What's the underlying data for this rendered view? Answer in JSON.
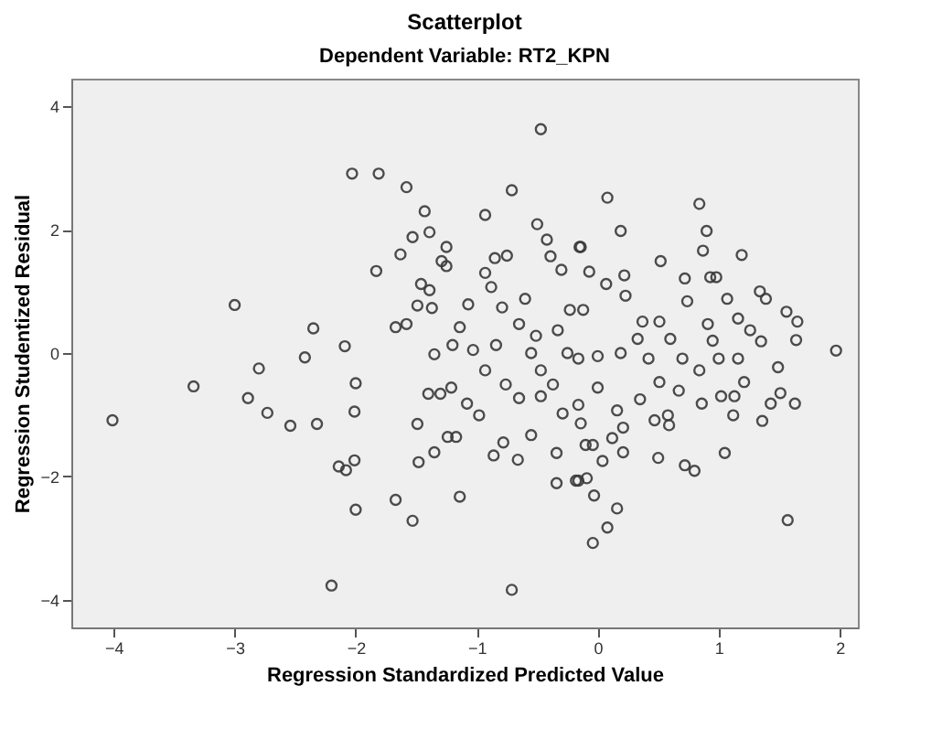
{
  "chart_data": {
    "type": "scatter",
    "title": "Scatterplot",
    "subtitle": "Dependent Variable: RT2_KPN",
    "xlabel": "Regression Standardized Predicted Value",
    "ylabel": "Regression Studentized Residual",
    "x": [
      -4.01,
      -3.0,
      -3.34,
      -2.89,
      -2.8,
      -2.73,
      -2.54,
      -2.32,
      -2.42,
      -2.35,
      -2.2,
      -2.03,
      -1.81,
      -1.58,
      -1.43,
      -0.93,
      -0.71,
      -0.47,
      -0.5,
      -1.83,
      -1.63,
      -1.25,
      -2.09,
      -2.0,
      -2.01,
      -2.14,
      -2.08,
      -2.01,
      -2.0,
      -1.67,
      -1.53,
      -1.14,
      -0.71,
      -1.48,
      -1.35,
      -1.24,
      -1.17,
      -1.49,
      -1.4,
      -1.3,
      -1.21,
      -1.08,
      -0.98,
      -0.86,
      -0.78,
      -0.66,
      -0.55,
      -0.34,
      -0.34,
      -0.18,
      -1.67,
      -1.58,
      -1.49,
      -1.37,
      -1.46,
      -1.39,
      -1.29,
      -1.25,
      -1.39,
      -1.53,
      -1.35,
      -1.2,
      -1.03,
      -0.93,
      -0.88,
      -0.79,
      -0.93,
      -0.76,
      -0.84,
      -0.65,
      -0.6,
      -0.75,
      -0.85,
      -0.42,
      -0.39,
      -0.3,
      -0.15,
      -0.55,
      -0.47,
      -0.37,
      -0.29,
      -0.25,
      -0.16,
      -0.23,
      -0.33,
      -0.51,
      -0.47,
      -0.65,
      -1.07,
      -1.14,
      0.08,
      0.84,
      0.19,
      0.9,
      0.87,
      1.19,
      -0.14,
      0.52,
      -0.07,
      0.22,
      0.93,
      0.98,
      0.72,
      1.34,
      1.39,
      1.56,
      1.65,
      1.64,
      1.97,
      1.63,
      1.51,
      1.43,
      1.36,
      1.57,
      1.05,
      0.72,
      0.8,
      0.5,
      0.04,
      0.21,
      -0.03,
      0.16,
      0.08,
      -0.04,
      -0.16,
      -0.09,
      0.12,
      0.21,
      -0.14,
      -0.1,
      -0.04,
      0.58,
      0.47,
      0.59,
      0.86,
      1.02,
      1.12,
      1.13,
      0.35,
      0.67,
      0.51,
      0.0,
      -0.16,
      0.16,
      0.0,
      0.19,
      0.33,
      0.51,
      0.74,
      0.91,
      0.95,
      0.84,
      1.16,
      1.26,
      1.35,
      1.49,
      1.21,
      0.7,
      0.6,
      0.42,
      0.37,
      0.23,
      0.07,
      -0.12,
      1.07,
      1.16,
      1.0
    ],
    "values": [
      -1.09,
      0.78,
      -0.54,
      -0.73,
      -0.25,
      -0.97,
      -1.18,
      -1.15,
      -0.07,
      0.4,
      -3.77,
      2.91,
      2.91,
      2.69,
      2.3,
      2.24,
      2.64,
      3.63,
      2.09,
      1.33,
      1.6,
      1.72,
      0.11,
      -0.49,
      -0.95,
      -1.84,
      -1.9,
      -1.74,
      -2.54,
      -2.38,
      -2.72,
      -2.33,
      -3.84,
      -1.77,
      -1.61,
      -1.36,
      -1.36,
      -1.15,
      -0.66,
      -0.66,
      -0.56,
      -0.82,
      -1.01,
      -1.66,
      -1.45,
      -1.73,
      -1.33,
      -1.62,
      -2.11,
      -2.07,
      0.42,
      0.47,
      0.77,
      0.73,
      1.12,
      1.02,
      1.49,
      1.41,
      1.96,
      1.88,
      -0.02,
      0.13,
      0.05,
      1.3,
      1.07,
      0.74,
      -0.28,
      -0.51,
      0.13,
      0.47,
      0.88,
      1.58,
      1.54,
      1.84,
      1.57,
      1.35,
      1.72,
      0.0,
      -0.28,
      -0.51,
      -0.98,
      0.0,
      -0.09,
      0.7,
      0.37,
      0.28,
      -0.7,
      -0.73,
      0.79,
      0.42,
      2.52,
      2.42,
      1.98,
      1.98,
      1.66,
      1.59,
      1.72,
      1.49,
      1.32,
      1.26,
      1.23,
      1.23,
      1.21,
      1.0,
      0.88,
      0.67,
      0.51,
      0.21,
      0.04,
      -0.82,
      -0.65,
      -0.82,
      -1.1,
      -2.71,
      -1.62,
      -1.82,
      -1.91,
      -1.7,
      -1.75,
      -1.61,
      -2.31,
      -2.52,
      -2.83,
      -3.08,
      -2.07,
      -2.03,
      -1.38,
      -1.21,
      -1.14,
      -1.49,
      -1.49,
      -1.01,
      -1.09,
      -1.17,
      -0.82,
      -0.7,
      -1.01,
      -0.7,
      -0.75,
      -0.61,
      -0.47,
      -0.56,
      -0.84,
      -0.93,
      -0.05,
      0.0,
      0.23,
      0.51,
      0.84,
      0.47,
      0.2,
      -0.28,
      0.56,
      0.37,
      0.19,
      -0.23,
      -0.47,
      -0.09,
      0.23,
      -0.09,
      0.51,
      0.93,
      1.12,
      0.7,
      0.88,
      -0.09,
      -0.09
    ],
    "color": "#3a3a3a",
    "marker": "circle",
    "xlim": [
      -4.35,
      2.15
    ],
    "xticks": [
      -4,
      -3,
      -2,
      -1,
      0,
      1,
      2
    ],
    "ylim": [
      -4.45,
      4.45
    ],
    "yticks": [
      -4,
      -2,
      0,
      2,
      4
    ],
    "grid": false
  }
}
